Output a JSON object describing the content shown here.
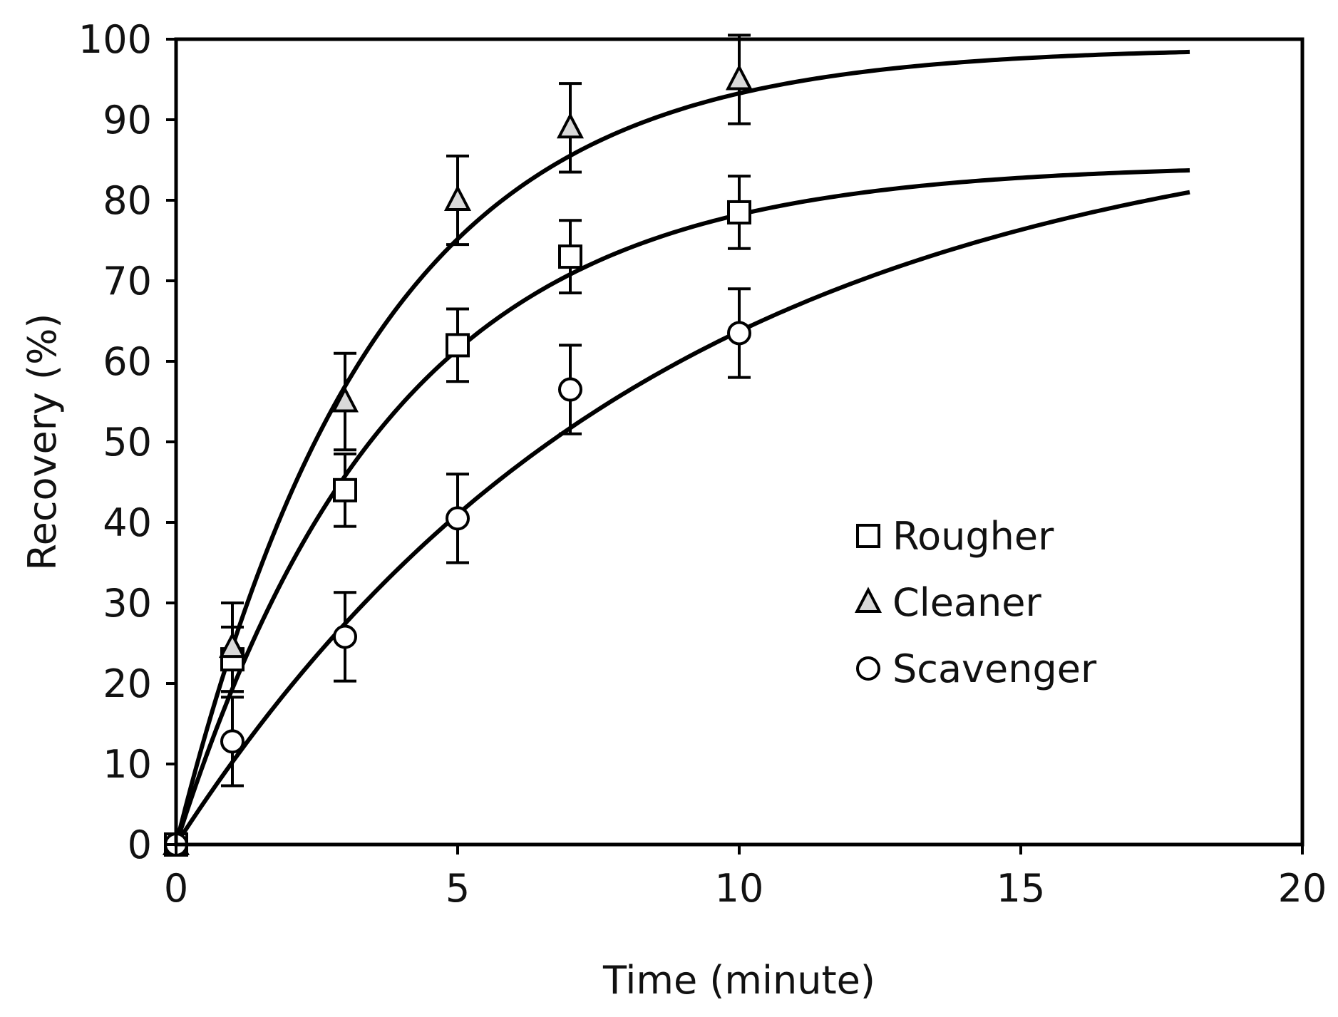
{
  "chart_data": {
    "type": "scatter",
    "title": "",
    "xlabel": "Time (minute)",
    "ylabel": "Recovery (%)",
    "xlim": [
      0,
      20
    ],
    "ylim": [
      0,
      100
    ],
    "xticks": [
      0,
      5,
      10,
      15,
      20
    ],
    "yticks": [
      0,
      10,
      20,
      30,
      40,
      50,
      60,
      70,
      80,
      90,
      100
    ],
    "grid": false,
    "legend_position": "center-right",
    "series": [
      {
        "name": "Rougher",
        "marker": "square",
        "x": [
          0,
          1,
          3,
          5,
          7,
          10
        ],
        "y": [
          0,
          23,
          44,
          62,
          73,
          78.5
        ],
        "error": [
          0,
          4,
          4.5,
          4.5,
          4.5,
          4.5
        ],
        "fit": {
          "model": "first-order",
          "rmax": 84.5,
          "k": 0.26,
          "x_end": 18
        }
      },
      {
        "name": "Cleaner",
        "marker": "triangle",
        "x": [
          0,
          1,
          3,
          5,
          7,
          10
        ],
        "y": [
          0,
          24.5,
          55,
          80,
          89,
          95
        ],
        "error": [
          0,
          5.5,
          6,
          5.5,
          5.5,
          5.5
        ],
        "fit": {
          "model": "first-order",
          "rmax": 99,
          "k": 0.285,
          "x_end": 18
        }
      },
      {
        "name": "Scavenger",
        "marker": "circle",
        "x": [
          0,
          1,
          3,
          5,
          7,
          10
        ],
        "y": [
          0,
          12.8,
          25.8,
          40.5,
          56.5,
          63.5
        ],
        "error": [
          0,
          5.5,
          5.5,
          5.5,
          5.5,
          5.5
        ],
        "fit": {
          "model": "first-order",
          "rmax": 92,
          "k": 0.118,
          "x_end": 18
        }
      }
    ]
  }
}
